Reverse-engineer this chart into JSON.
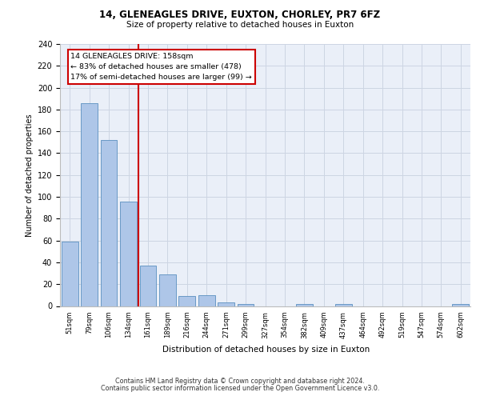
{
  "title1": "14, GLENEAGLES DRIVE, EUXTON, CHORLEY, PR7 6FZ",
  "title2": "Size of property relative to detached houses in Euxton",
  "xlabel": "Distribution of detached houses by size in Euxton",
  "ylabel": "Number of detached properties",
  "categories": [
    "51sqm",
    "79sqm",
    "106sqm",
    "134sqm",
    "161sqm",
    "189sqm",
    "216sqm",
    "244sqm",
    "271sqm",
    "299sqm",
    "327sqm",
    "354sqm",
    "382sqm",
    "409sqm",
    "437sqm",
    "464sqm",
    "492sqm",
    "519sqm",
    "547sqm",
    "574sqm",
    "602sqm"
  ],
  "values": [
    59,
    186,
    152,
    96,
    37,
    29,
    9,
    10,
    3,
    2,
    0,
    0,
    2,
    0,
    2,
    0,
    0,
    0,
    0,
    0,
    2
  ],
  "bar_color": "#aec6e8",
  "bar_edge_color": "#5a8fc0",
  "vline_index": 4,
  "annotation_line1": "14 GLENEAGLES DRIVE: 158sqm",
  "annotation_line2": "← 83% of detached houses are smaller (478)",
  "annotation_line3": "17% of semi-detached houses are larger (99) →",
  "annotation_box_facecolor": "#ffffff",
  "annotation_border_color": "#cc0000",
  "vline_color": "#cc0000",
  "ylim_max": 240,
  "yticks": [
    0,
    20,
    40,
    60,
    80,
    100,
    120,
    140,
    160,
    180,
    200,
    220,
    240
  ],
  "grid_color": "#cdd5e3",
  "axes_bg_color": "#eaeff8",
  "footer1": "Contains HM Land Registry data © Crown copyright and database right 2024.",
  "footer2": "Contains public sector information licensed under the Open Government Licence v3.0."
}
